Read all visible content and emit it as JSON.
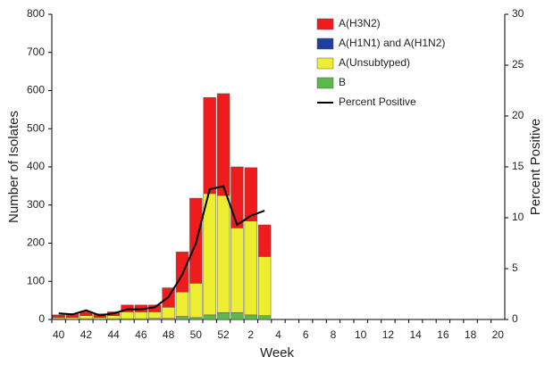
{
  "chart_data": {
    "type": "stacked_bar_line",
    "xlabel": "Week",
    "ylabel": "Number of Isolates",
    "y2label": "Percent Positive",
    "categories": [
      "40",
      null,
      "42",
      null,
      "44",
      null,
      "46",
      null,
      "48",
      null,
      "50",
      null,
      "52",
      null,
      "2",
      null,
      "4",
      null,
      "6",
      null,
      "8",
      null,
      "10",
      null,
      "12",
      null,
      "14",
      null,
      "16",
      null,
      "18",
      null,
      "20"
    ],
    "series": [
      {
        "name": "A(H3N2)",
        "color": "#ee1c1c",
        "values": [
          7,
          10,
          10,
          10,
          10,
          18,
          18,
          18,
          51,
          105,
          223,
          252,
          267,
          160,
          140,
          83,
          null,
          null,
          null,
          null,
          null,
          null,
          null,
          null,
          null,
          null,
          null,
          null,
          null,
          null,
          null,
          null,
          null
        ]
      },
      {
        "name": "A(H1N1) and A(H1N2)",
        "color": "#1f3fa0",
        "values": [
          0,
          0,
          0,
          0,
          0,
          0,
          0,
          0,
          0,
          0,
          0,
          0,
          0,
          0,
          0,
          0,
          null,
          null,
          null,
          null,
          null,
          null,
          null,
          null,
          null,
          null,
          null,
          null,
          null,
          null,
          null,
          null,
          null
        ]
      },
      {
        "name": "A(Unsubtyped)",
        "color": "#eeee30",
        "values": [
          3,
          4,
          8,
          4,
          8,
          18,
          18,
          17,
          29,
          64,
          90,
          318,
          307,
          222,
          246,
          155,
          null,
          null,
          null,
          null,
          null,
          null,
          null,
          null,
          null,
          null,
          null,
          null,
          null,
          null,
          null,
          null,
          null
        ]
      },
      {
        "name": "B",
        "color": "#5cb84a",
        "values": [
          2,
          1,
          2,
          1,
          2,
          2,
          2,
          3,
          3,
          8,
          5,
          12,
          18,
          18,
          12,
          10,
          null,
          null,
          null,
          null,
          null,
          null,
          null,
          null,
          null,
          null,
          null,
          null,
          null,
          null,
          null,
          null,
          null
        ]
      },
      {
        "name": "Percent Positive",
        "color": "#000000",
        "axis": "y2",
        "type": "line",
        "values": [
          0.6,
          0.5,
          0.9,
          0.4,
          0.6,
          1.0,
          1.0,
          1.2,
          2.2,
          4.4,
          7.5,
          12.8,
          13.1,
          9.3,
          10.2,
          10.7,
          null,
          null,
          null,
          null,
          null,
          null,
          null,
          null,
          null,
          null,
          null,
          null,
          null,
          null,
          null,
          null,
          null
        ]
      }
    ],
    "ylim": [
      0,
      800
    ],
    "yticks": [
      0,
      100,
      200,
      300,
      400,
      500,
      600,
      700,
      800
    ],
    "y2lim": [
      0,
      30
    ],
    "y2ticks": [
      0,
      5,
      10,
      15,
      20,
      25,
      30
    ]
  }
}
